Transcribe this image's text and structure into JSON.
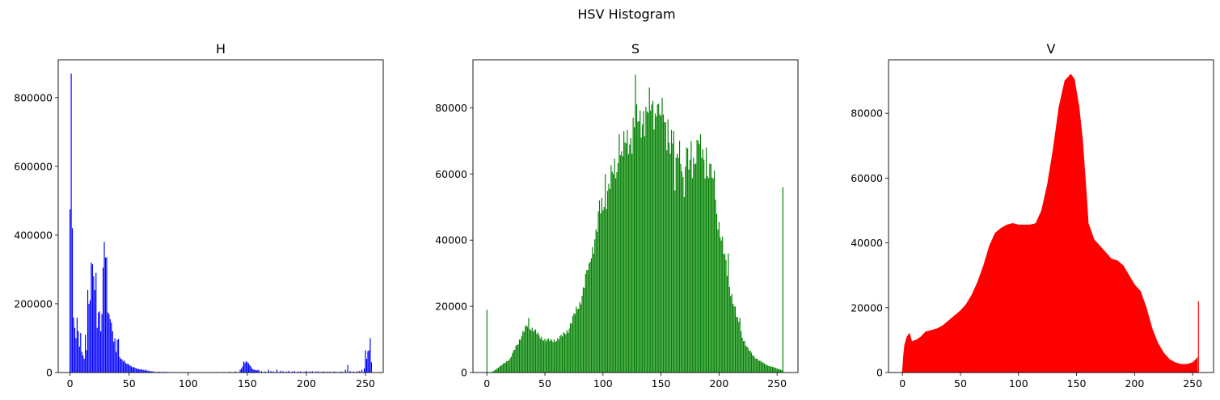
{
  "figure": {
    "suptitle": "HSV Histogram"
  },
  "chart_data": [
    {
      "type": "bar",
      "title": "H",
      "color": "#0000ff",
      "xlabel": "",
      "ylabel": "",
      "xlim": [
        -10,
        265
      ],
      "ylim": [
        0,
        910000
      ],
      "xticks": [
        0,
        50,
        100,
        150,
        200,
        250
      ],
      "yticks": [
        0,
        200000,
        400000,
        600000,
        800000
      ],
      "grid": false,
      "points": [
        [
          0,
          475000
        ],
        [
          1,
          870000
        ],
        [
          2,
          420000
        ],
        [
          3,
          160000
        ],
        [
          4,
          130000
        ],
        [
          5,
          100000
        ],
        [
          6,
          160000
        ],
        [
          7,
          120000
        ],
        [
          8,
          75000
        ],
        [
          9,
          115000
        ],
        [
          10,
          60000
        ],
        [
          11,
          50000
        ],
        [
          12,
          40000
        ],
        [
          13,
          110000
        ],
        [
          14,
          65000
        ],
        [
          15,
          240000
        ],
        [
          16,
          200000
        ],
        [
          17,
          210000
        ],
        [
          18,
          320000
        ],
        [
          19,
          315000
        ],
        [
          20,
          280000
        ],
        [
          21,
          240000
        ],
        [
          22,
          290000
        ],
        [
          23,
          130000
        ],
        [
          24,
          175000
        ],
        [
          25,
          178000
        ],
        [
          26,
          120000
        ],
        [
          27,
          170000
        ],
        [
          28,
          305000
        ],
        [
          29,
          380000
        ],
        [
          30,
          335000
        ],
        [
          31,
          335000
        ],
        [
          32,
          175000
        ],
        [
          33,
          170000
        ],
        [
          34,
          155000
        ],
        [
          35,
          145000
        ],
        [
          36,
          120000
        ],
        [
          37,
          90000
        ],
        [
          38,
          100000
        ],
        [
          39,
          60000
        ],
        [
          40,
          95000
        ],
        [
          41,
          98000
        ],
        [
          42,
          45000
        ],
        [
          43,
          40000
        ],
        [
          44,
          38000
        ],
        [
          45,
          32000
        ],
        [
          46,
          35000
        ],
        [
          47,
          28000
        ],
        [
          48,
          25000
        ],
        [
          49,
          26000
        ],
        [
          50,
          22000
        ],
        [
          51,
          20000
        ],
        [
          52,
          18000
        ],
        [
          53,
          15000
        ],
        [
          54,
          16000
        ],
        [
          55,
          14000
        ],
        [
          56,
          12000
        ],
        [
          57,
          11000
        ],
        [
          58,
          10000
        ],
        [
          59,
          9000
        ],
        [
          60,
          10000
        ],
        [
          61,
          8000
        ],
        [
          62,
          8000
        ],
        [
          63,
          6000
        ],
        [
          64,
          9000
        ],
        [
          65,
          5000
        ],
        [
          66,
          6000
        ],
        [
          67,
          4000
        ],
        [
          68,
          4000
        ],
        [
          69,
          3000
        ],
        [
          70,
          4000
        ],
        [
          72,
          3000
        ],
        [
          74,
          2500
        ],
        [
          76,
          2500
        ],
        [
          78,
          2000
        ],
        [
          80,
          2000
        ],
        [
          82,
          1500
        ],
        [
          85,
          1500
        ],
        [
          88,
          1200
        ],
        [
          90,
          1200
        ],
        [
          95,
          1000
        ],
        [
          100,
          1000
        ],
        [
          105,
          1200
        ],
        [
          110,
          1000
        ],
        [
          115,
          800
        ],
        [
          120,
          1000
        ],
        [
          125,
          1200
        ],
        [
          130,
          1500
        ],
        [
          135,
          2000
        ],
        [
          140,
          3000
        ],
        [
          144,
          8000
        ],
        [
          145,
          12000
        ],
        [
          146,
          18000
        ],
        [
          147,
          32000
        ],
        [
          148,
          28000
        ],
        [
          149,
          33000
        ],
        [
          150,
          30000
        ],
        [
          151,
          27000
        ],
        [
          152,
          22000
        ],
        [
          153,
          18000
        ],
        [
          154,
          12000
        ],
        [
          155,
          9000
        ],
        [
          156,
          8000
        ],
        [
          157,
          7000
        ],
        [
          158,
          6000
        ],
        [
          159,
          8000
        ],
        [
          160,
          6000
        ],
        [
          162,
          4000
        ],
        [
          165,
          3000
        ],
        [
          168,
          8000
        ],
        [
          170,
          4000
        ],
        [
          172,
          3000
        ],
        [
          175,
          8000
        ],
        [
          178,
          5000
        ],
        [
          180,
          4000
        ],
        [
          183,
          3000
        ],
        [
          185,
          5000
        ],
        [
          188,
          3000
        ],
        [
          190,
          4000
        ],
        [
          193,
          3000
        ],
        [
          195,
          3500
        ],
        [
          198,
          2500
        ],
        [
          200,
          5000
        ],
        [
          203,
          3000
        ],
        [
          205,
          4000
        ],
        [
          208,
          3000
        ],
        [
          210,
          3500
        ],
        [
          213,
          2500
        ],
        [
          215,
          3000
        ],
        [
          218,
          2500
        ],
        [
          220,
          3000
        ],
        [
          223,
          2500
        ],
        [
          225,
          3000
        ],
        [
          228,
          2500
        ],
        [
          230,
          3000
        ],
        [
          233,
          8000
        ],
        [
          235,
          22000
        ],
        [
          237,
          4000
        ],
        [
          240,
          3000
        ],
        [
          243,
          4000
        ],
        [
          245,
          5000
        ],
        [
          247,
          8000
        ],
        [
          249,
          12000
        ],
        [
          250,
          65000
        ],
        [
          251,
          40000
        ],
        [
          252,
          62000
        ],
        [
          253,
          65000
        ],
        [
          254,
          100000
        ],
        [
          255,
          30000
        ]
      ]
    },
    {
      "type": "bar",
      "title": "S",
      "color": "#008000",
      "xlabel": "",
      "ylabel": "",
      "xlim": [
        -12,
        268
      ],
      "ylim": [
        0,
        94500
      ],
      "xticks": [
        0,
        50,
        100,
        150,
        200,
        250
      ],
      "yticks": [
        0,
        20000,
        40000,
        60000,
        80000
      ],
      "grid": false,
      "special": [
        [
          0,
          19000
        ],
        [
          128,
          90000
        ],
        [
          255,
          56000
        ]
      ],
      "curve": [
        [
          1,
          0
        ],
        [
          4,
          0
        ],
        [
          5,
          300
        ],
        [
          8,
          1000
        ],
        [
          12,
          2000
        ],
        [
          15,
          3000
        ],
        [
          20,
          4000
        ],
        [
          25,
          8000
        ],
        [
          30,
          11000
        ],
        [
          35,
          14500
        ],
        [
          40,
          13000
        ],
        [
          45,
          11000
        ],
        [
          50,
          10000
        ],
        [
          55,
          9500
        ],
        [
          60,
          10000
        ],
        [
          65,
          11000
        ],
        [
          70,
          13000
        ],
        [
          75,
          17000
        ],
        [
          80,
          21000
        ],
        [
          85,
          28000
        ],
        [
          90,
          36000
        ],
        [
          95,
          44000
        ],
        [
          100,
          51000
        ],
        [
          105,
          56000
        ],
        [
          110,
          61000
        ],
        [
          115,
          65000
        ],
        [
          120,
          69000
        ],
        [
          125,
          72000
        ],
        [
          130,
          75000
        ],
        [
          135,
          77000
        ],
        [
          140,
          79000
        ],
        [
          145,
          79500
        ],
        [
          150,
          77000
        ],
        [
          155,
          73000
        ],
        [
          160,
          69000
        ],
        [
          165,
          64000
        ],
        [
          170,
          62000
        ],
        [
          175,
          63000
        ],
        [
          180,
          66000
        ],
        [
          185,
          67000
        ],
        [
          190,
          62000
        ],
        [
          195,
          55000
        ],
        [
          200,
          45000
        ],
        [
          205,
          34000
        ],
        [
          210,
          25000
        ],
        [
          215,
          17000
        ],
        [
          220,
          11000
        ],
        [
          225,
          7000
        ],
        [
          230,
          5000
        ],
        [
          235,
          3500
        ],
        [
          240,
          2500
        ],
        [
          245,
          1800
        ],
        [
          250,
          1200
        ],
        [
          254,
          800
        ]
      ],
      "spikes": [
        [
          36,
          16500
        ],
        [
          88,
          33000
        ],
        [
          97,
          52000
        ],
        [
          102,
          60000
        ],
        [
          114,
          72000
        ],
        [
          118,
          73000
        ],
        [
          126,
          77000
        ],
        [
          135,
          79000
        ],
        [
          142,
          81000
        ],
        [
          147,
          81000
        ],
        [
          152,
          78000
        ],
        [
          156,
          76500
        ],
        [
          161,
          73000
        ],
        [
          166,
          70000
        ],
        [
          172,
          68000
        ],
        [
          176,
          70000
        ],
        [
          182,
          70000
        ],
        [
          184,
          72000
        ],
        [
          189,
          68000
        ],
        [
          193,
          63000
        ],
        [
          196,
          61000
        ],
        [
          208,
          36000
        ],
        [
          218,
          16500
        ],
        [
          162,
          55000
        ],
        [
          170,
          53000
        ]
      ]
    },
    {
      "type": "area",
      "title": "V",
      "color": "#ff0000",
      "xlabel": "",
      "ylabel": "",
      "xlim": [
        -12,
        268
      ],
      "ylim": [
        0,
        96500
      ],
      "xticks": [
        0,
        50,
        100,
        150,
        200,
        250
      ],
      "yticks": [
        0,
        20000,
        40000,
        60000,
        80000
      ],
      "grid": false,
      "special": [
        [
          255,
          22000
        ]
      ],
      "curve": [
        [
          0,
          0
        ],
        [
          1,
          5000
        ],
        [
          2,
          8500
        ],
        [
          4,
          11000
        ],
        [
          6,
          12000
        ],
        [
          8,
          9500
        ],
        [
          12,
          10000
        ],
        [
          16,
          11000
        ],
        [
          20,
          12500
        ],
        [
          25,
          13000
        ],
        [
          30,
          13500
        ],
        [
          35,
          14500
        ],
        [
          40,
          16000
        ],
        [
          45,
          17500
        ],
        [
          50,
          19000
        ],
        [
          55,
          21000
        ],
        [
          60,
          24000
        ],
        [
          65,
          28000
        ],
        [
          70,
          33000
        ],
        [
          75,
          39000
        ],
        [
          80,
          43000
        ],
        [
          85,
          44500
        ],
        [
          90,
          45500
        ],
        [
          95,
          46000
        ],
        [
          100,
          45500
        ],
        [
          105,
          45500
        ],
        [
          110,
          45500
        ],
        [
          115,
          46000
        ],
        [
          120,
          50000
        ],
        [
          125,
          58000
        ],
        [
          130,
          69000
        ],
        [
          135,
          82000
        ],
        [
          140,
          90000
        ],
        [
          145,
          92000
        ],
        [
          148,
          90500
        ],
        [
          152,
          82000
        ],
        [
          155,
          72000
        ],
        [
          158,
          57000
        ],
        [
          160,
          46000
        ],
        [
          165,
          41000
        ],
        [
          170,
          39000
        ],
        [
          175,
          37000
        ],
        [
          180,
          35000
        ],
        [
          185,
          34500
        ],
        [
          190,
          33000
        ],
        [
          195,
          30000
        ],
        [
          200,
          27000
        ],
        [
          205,
          25000
        ],
        [
          210,
          20000
        ],
        [
          215,
          13500
        ],
        [
          220,
          9000
        ],
        [
          225,
          6000
        ],
        [
          230,
          4000
        ],
        [
          235,
          3000
        ],
        [
          240,
          2500
        ],
        [
          245,
          2500
        ],
        [
          250,
          3000
        ],
        [
          253,
          4000
        ],
        [
          254,
          4500
        ]
      ]
    }
  ]
}
